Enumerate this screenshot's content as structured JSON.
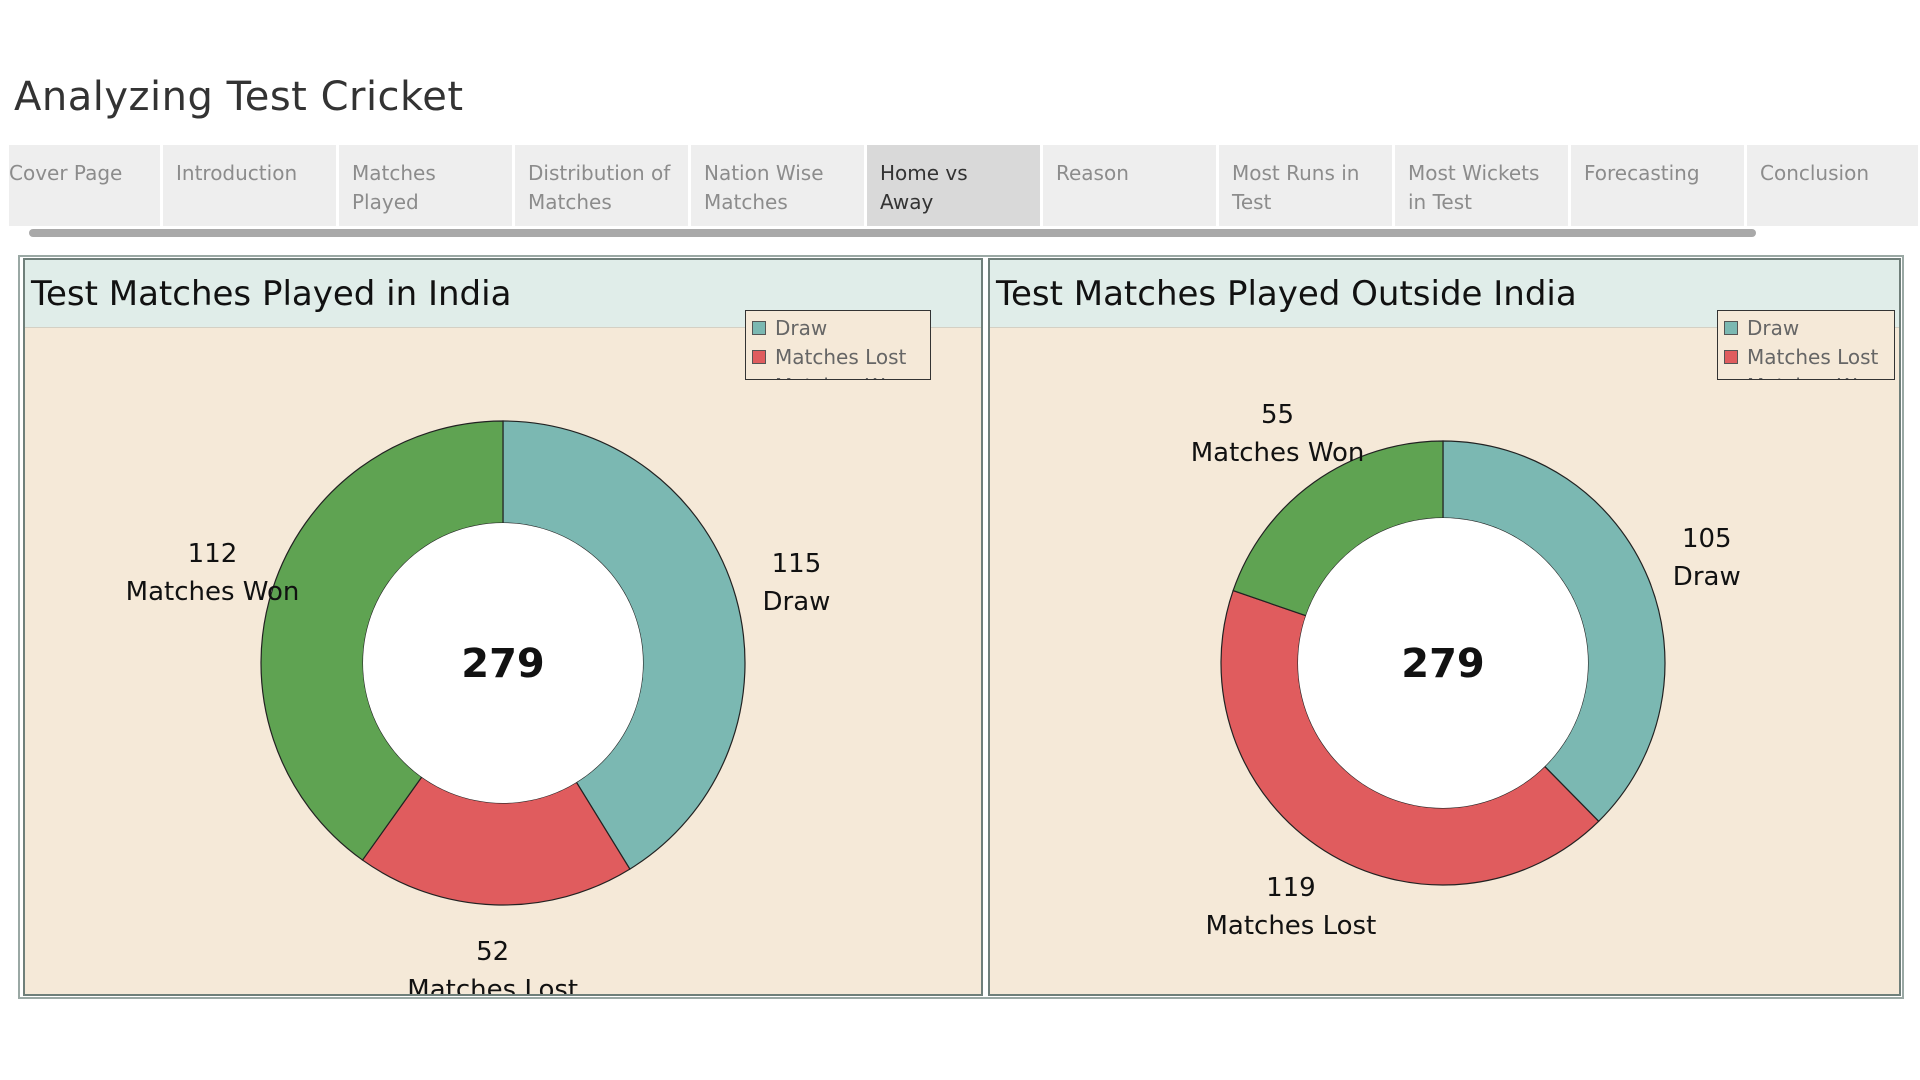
{
  "page": {
    "title": "Analyzing Test Cricket"
  },
  "tabs": [
    {
      "label": "Cover Page",
      "active": false
    },
    {
      "label": "Introduction",
      "active": false
    },
    {
      "label": "Matches\nPlayed",
      "active": false
    },
    {
      "label": "Distribution of\nMatches",
      "active": false
    },
    {
      "label": "Nation Wise\nMatches",
      "active": false
    },
    {
      "label": "Home vs Away",
      "active": true
    },
    {
      "label": "Reason",
      "active": false
    },
    {
      "label": "Most Runs in\nTest",
      "active": false
    },
    {
      "label": "Most Wickets\nin Test",
      "active": false
    },
    {
      "label": "Forecasting",
      "active": false
    },
    {
      "label": "Conclusion",
      "active": false
    }
  ],
  "colors": {
    "Draw": "#7bb8b2",
    "Matches Lost": "#e05c5e",
    "Matches Won": "#5fa352",
    "panel_background": "#f5e9d8",
    "header_background": "#e0ede9",
    "active_tab": "#d9d9d9",
    "tab": "#eeeeee"
  },
  "legend": [
    "Draw",
    "Matches Lost",
    "Matches Won"
  ],
  "chart_data": [
    {
      "type": "pie",
      "variant": "donut",
      "title": "Test Matches Played in India",
      "center_label": "279",
      "slices": [
        {
          "label": "Draw",
          "value": 115
        },
        {
          "label": "Matches Lost",
          "value": 52
        },
        {
          "label": "Matches Won",
          "value": 112
        }
      ],
      "legend_position": "top-right"
    },
    {
      "type": "pie",
      "variant": "donut",
      "title": "Test Matches Played Outside India",
      "center_label": "279",
      "slices": [
        {
          "label": "Draw",
          "value": 105
        },
        {
          "label": "Matches Lost",
          "value": 119
        },
        {
          "label": "Matches Won",
          "value": 55
        }
      ],
      "legend_position": "top-right"
    }
  ]
}
